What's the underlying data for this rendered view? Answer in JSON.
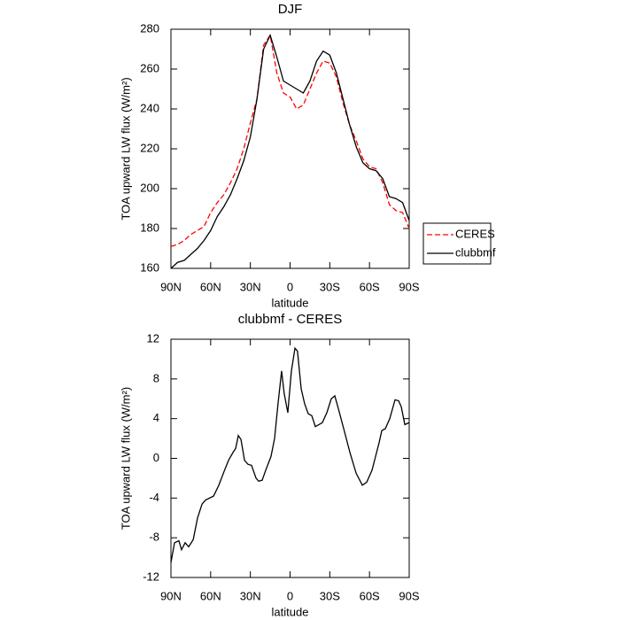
{
  "chart_data": [
    {
      "type": "line",
      "title": "DJF",
      "xlabel": "latitude",
      "ylabel": "TOA upward LW flux (W/m²)",
      "x": [
        90,
        85,
        80,
        75,
        70,
        65,
        60,
        55,
        50,
        45,
        40,
        35,
        30,
        25,
        20,
        15,
        10,
        5,
        0,
        -5,
        -10,
        -15,
        -20,
        -25,
        -30,
        -35,
        -40,
        -45,
        -50,
        -55,
        -60,
        -65,
        -70,
        -75,
        -80,
        -85,
        -90
      ],
      "series": [
        {
          "name": "CERES",
          "color": "#ff0000",
          "linestyle": "dashed",
          "values": [
            171,
            172,
            174,
            177,
            179,
            181,
            188,
            193,
            197,
            203,
            210,
            220,
            233,
            245,
            272,
            277,
            258,
            248,
            246,
            240,
            242,
            250,
            258,
            264,
            263,
            256,
            243,
            232,
            224,
            215,
            211,
            210,
            203,
            192,
            189,
            188,
            180
          ]
        },
        {
          "name": "clubbmf",
          "color": "#000000",
          "linestyle": "solid",
          "values": [
            160,
            163,
            164,
            167,
            170,
            174,
            179,
            186,
            191,
            197,
            205,
            214,
            226,
            245,
            270,
            277,
            266,
            254,
            252,
            250,
            248,
            254,
            264,
            269,
            267,
            258,
            245,
            232,
            221,
            213,
            210,
            209,
            205,
            196,
            195,
            193,
            184
          ]
        }
      ],
      "xlim": [
        90,
        -90
      ],
      "xticks": [
        {
          "value": 90,
          "label": "90N"
        },
        {
          "value": 60,
          "label": "60N"
        },
        {
          "value": 30,
          "label": "30N"
        },
        0,
        {
          "value": -30,
          "label": "30S"
        },
        {
          "value": -60,
          "label": "60S"
        },
        {
          "value": -90,
          "label": "90S"
        }
      ],
      "ylim": [
        160,
        280
      ],
      "yticks": [
        160,
        180,
        200,
        220,
        240,
        260,
        280
      ],
      "legend": "right"
    },
    {
      "type": "line",
      "title": "clubbmf - CERES",
      "xlabel": "latitude",
      "ylabel": "TOA upward LW flux (W/m²)",
      "x": [
        90,
        87.3,
        84,
        82,
        79.3,
        76.6,
        73.2,
        69.9,
        66.5,
        63.8,
        57.8,
        53.8,
        49.8,
        46.5,
        43.1,
        41.1,
        39.1,
        37.1,
        34.4,
        31.8,
        29.1,
        25.7,
        23.7,
        21.1,
        18.4,
        14.4,
        11.7,
        9.1,
        6.4,
        4.4,
        1.7,
        -1,
        -3.7,
        -5.6,
        -8.4,
        -11,
        -13.7,
        -16.4,
        -19.1,
        -24.4,
        -27.8,
        -31.1,
        -33.8,
        -36.5,
        -40.5,
        -45.2,
        -49.9,
        -54.6,
        -57.9,
        -61.9,
        -64.6,
        -67.3,
        -69.3,
        -72,
        -75.3,
        -79.3,
        -82,
        -84,
        -86.7,
        -90
      ],
      "series": [
        {
          "name": "clubbmf - CERES",
          "color": "#000000",
          "linestyle": "solid",
          "values": [
            -10.5,
            -8.5,
            -8.3,
            -9.2,
            -8.5,
            -8.9,
            -8.2,
            -6,
            -4.6,
            -4.2,
            -3.8,
            -2.7,
            -1.3,
            -0.2,
            0.6,
            1,
            2.3,
            1.9,
            -0.2,
            -0.6,
            -0.7,
            -2,
            -2.3,
            -2.2,
            -1.2,
            0.2,
            2,
            5.5,
            8.8,
            6.5,
            4.6,
            8.8,
            11.1,
            10.8,
            7,
            5.5,
            4.5,
            4.3,
            3.2,
            3.6,
            4.6,
            6,
            6.3,
            5,
            3,
            0.6,
            -1.5,
            -2.7,
            -2.4,
            -1.2,
            0.2,
            1.6,
            2.8,
            3,
            4,
            5.9,
            5.8,
            5.2,
            3.4,
            3.6
          ]
        }
      ],
      "xlim": [
        90,
        -90
      ],
      "xticks": [
        {
          "value": 90,
          "label": "90N"
        },
        {
          "value": 60,
          "label": "60N"
        },
        {
          "value": 30,
          "label": "30N"
        },
        0,
        {
          "value": -30,
          "label": "30S"
        },
        {
          "value": -60,
          "label": "60S"
        },
        {
          "value": -90,
          "label": "90S"
        }
      ],
      "ylim": [
        -12,
        12
      ],
      "yticks": [
        -12,
        -8,
        -4,
        0,
        4,
        8,
        12
      ]
    }
  ]
}
